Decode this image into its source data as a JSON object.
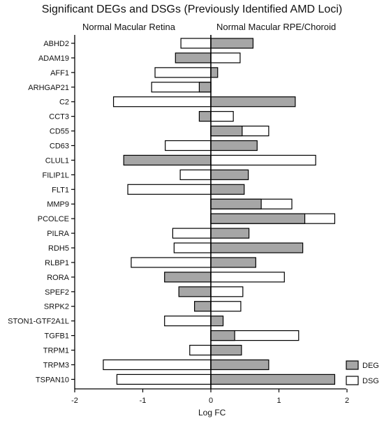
{
  "chart_data": {
    "type": "bar",
    "orientation": "horizontal",
    "title": "Significant DEGs and DSGs (Previously Identified AMD Loci)",
    "panel_left_label": "Normal Macular Retina",
    "panel_right_label": "Normal Macular RPE/Choroid",
    "xlabel": "Log FC",
    "xlim": [
      -2,
      2
    ],
    "xticks": [
      -2,
      -1,
      0,
      1,
      2
    ],
    "categories": [
      "ABHD2",
      "ADAM19",
      "AFF1",
      "ARHGAP21",
      "C2",
      "CCT3",
      "CD55",
      "CD63",
      "CLUL1",
      "FILIP1L",
      "FLT1",
      "MMP9",
      "PCOLCE",
      "PILRA",
      "RDH5",
      "RLBP1",
      "RORA",
      "SPEF2",
      "SRPK2",
      "STON1-GTF2A1L",
      "TGFB1",
      "TRPM1",
      "TRPM3",
      "TSPAN10"
    ],
    "series": [
      {
        "name": "DEG",
        "color": "#a6a6a6",
        "retina": [
          0,
          -0.52,
          0,
          -0.17,
          0,
          -0.17,
          0,
          0,
          -1.28,
          0,
          0,
          0,
          0,
          0,
          0,
          0,
          -0.68,
          -0.47,
          -0.24,
          0,
          0,
          0,
          0,
          0
        ],
        "rpe_choroid": [
          0.62,
          0,
          0.1,
          0,
          1.24,
          0,
          0.46,
          0.68,
          0,
          0.55,
          0.49,
          0.74,
          1.38,
          0.56,
          1.35,
          0.66,
          0,
          0,
          0,
          0.18,
          0.35,
          0.45,
          0.85,
          1.82
        ]
      },
      {
        "name": "DSG",
        "color": "#ffffff",
        "retina": [
          -0.44,
          0,
          -0.82,
          -0.87,
          -1.43,
          0,
          0,
          -0.67,
          0,
          -0.45,
          -1.22,
          0,
          0,
          -0.56,
          -0.54,
          -1.17,
          0,
          0,
          0,
          -0.68,
          0,
          -0.31,
          -1.58,
          -1.38
        ],
        "rpe_choroid": [
          0,
          0.43,
          0,
          0,
          0,
          0.33,
          0.85,
          0,
          1.54,
          0,
          0,
          1.19,
          1.82,
          0,
          0,
          0,
          1.08,
          0.47,
          0.44,
          0,
          1.29,
          0,
          0,
          0
        ]
      }
    ],
    "legend": {
      "position": "bottom-right",
      "entries": [
        "DEG",
        "DSG"
      ]
    },
    "grid": false
  }
}
